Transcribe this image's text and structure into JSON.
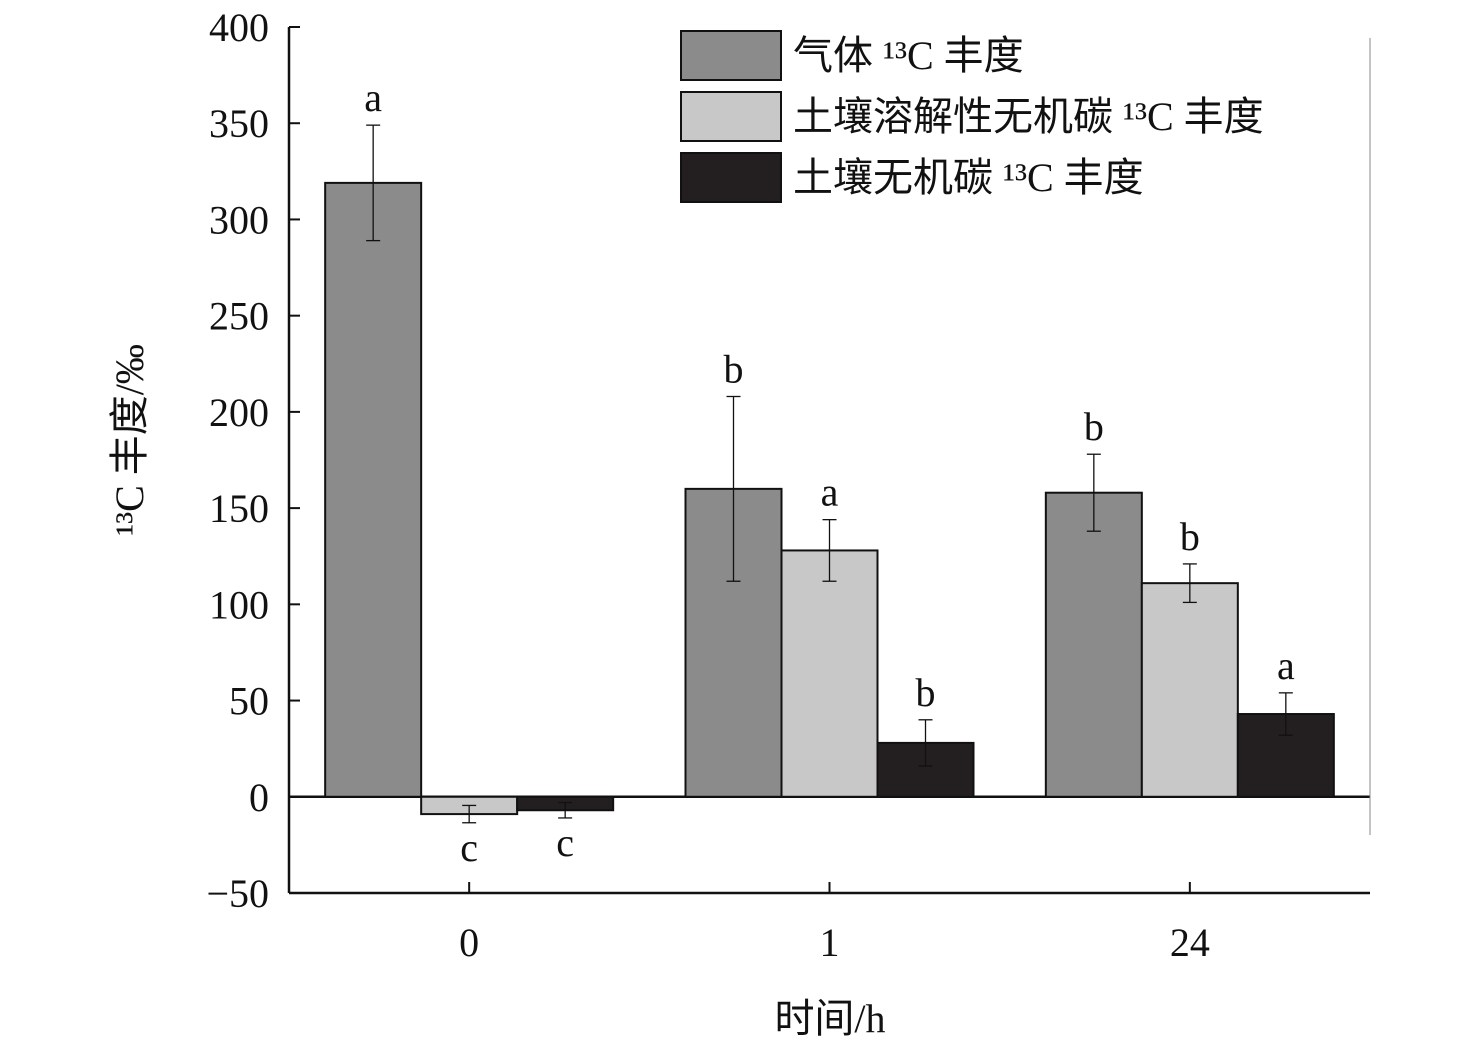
{
  "chart_data": {
    "type": "bar",
    "xlabel": "时间/h",
    "ylabel": "¹³C 丰度/‰",
    "ylim": [
      -50,
      400
    ],
    "yticks": [
      -50,
      0,
      50,
      100,
      150,
      200,
      250,
      300,
      350,
      400
    ],
    "categories": [
      "0",
      "1",
      "24"
    ],
    "legend_position": "top-right",
    "series": [
      {
        "name": "气体 ¹³C 丰度",
        "color": "#8c8b8c",
        "values": [
          319,
          160,
          158
        ],
        "errors": [
          30,
          48,
          20
        ],
        "labels": [
          "a",
          "b",
          "b"
        ]
      },
      {
        "name": "土壤溶解性无机碳 ¹³C 丰度",
        "color": "#c8c8c8",
        "values": [
          -9,
          128,
          111
        ],
        "errors": [
          4.5,
          16,
          10
        ],
        "labels": [
          "c",
          "a",
          "b"
        ]
      },
      {
        "name": "土壤无机碳 ¹³C 丰度",
        "color": "#231f20",
        "values": [
          -7,
          28,
          43
        ],
        "errors": [
          4,
          12,
          11
        ],
        "labels": [
          "c",
          "b",
          "a"
        ]
      }
    ]
  }
}
